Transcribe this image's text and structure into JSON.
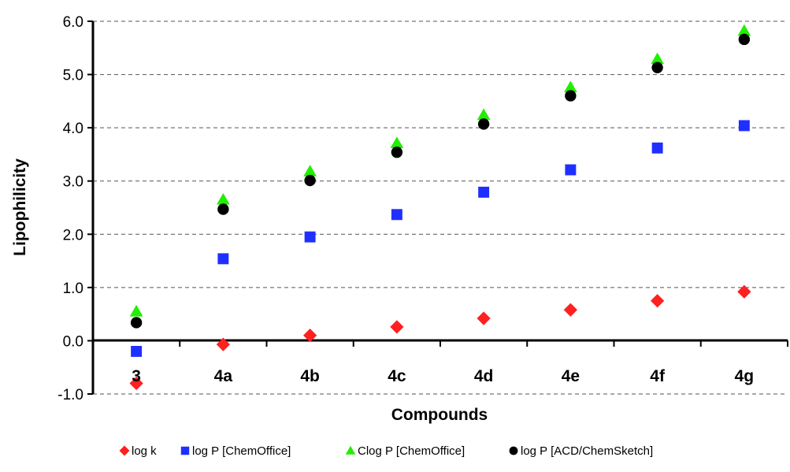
{
  "chart_data": {
    "type": "scatter",
    "title": "",
    "xlabel": "Compounds",
    "ylabel": "Lipophilicity",
    "categories": [
      "3",
      "4a",
      "4b",
      "4c",
      "4d",
      "4e",
      "4f",
      "4g"
    ],
    "ylim": [
      -1.0,
      6.0
    ],
    "yticks": [
      "-1.0",
      "0.0",
      "1.0",
      "2.0",
      "3.0",
      "4.0",
      "5.0",
      "6.0"
    ],
    "grid": "horizontal dashed",
    "legend_position": "bottom",
    "series": [
      {
        "name": "log k",
        "marker": "diamond",
        "color": "#ff2020",
        "values": [
          -0.8,
          -0.07,
          0.1,
          0.26,
          0.42,
          0.58,
          0.75,
          0.92
        ]
      },
      {
        "name": "log P [ChemOffice]",
        "marker": "square",
        "color": "#1f2fff",
        "values": [
          -0.2,
          1.54,
          1.95,
          2.37,
          2.79,
          3.21,
          3.62,
          4.04
        ]
      },
      {
        "name": "Clog P [ChemOffice]",
        "marker": "triangle",
        "color": "#22ee00",
        "values": [
          0.55,
          2.65,
          3.18,
          3.71,
          4.24,
          4.76,
          5.29,
          5.82
        ]
      },
      {
        "name": "log P [ACD/ChemSketch]",
        "marker": "circle",
        "color": "#000000",
        "values": [
          0.34,
          2.47,
          3.01,
          3.54,
          4.07,
          4.6,
          5.13,
          5.66
        ]
      }
    ]
  }
}
